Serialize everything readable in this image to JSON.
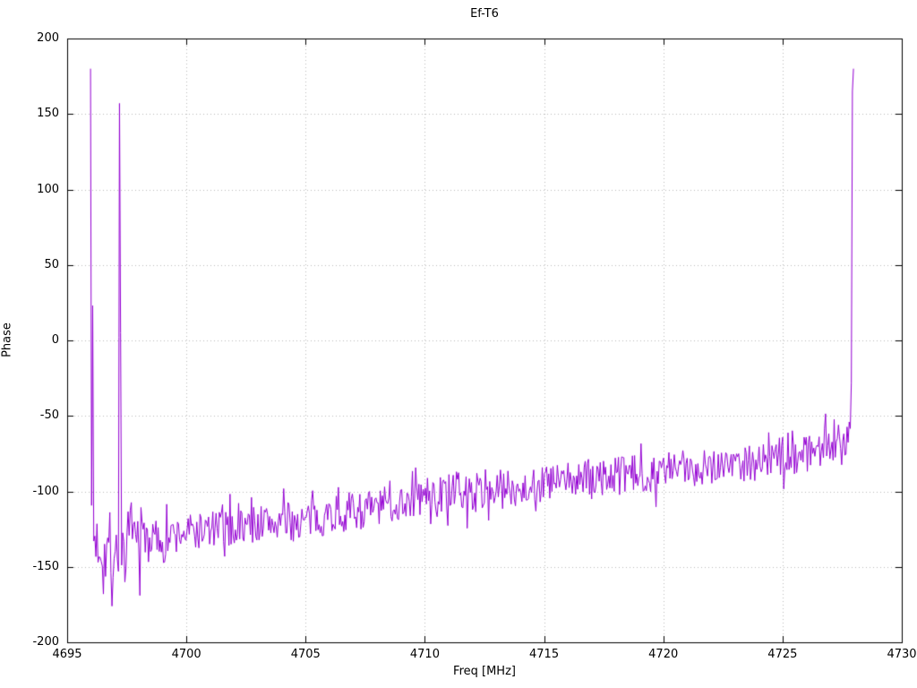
{
  "chart_data": {
    "type": "line",
    "title": "Ef-T6",
    "xlabel": "Freq [MHz]",
    "ylabel": "Phase",
    "xlim": [
      4695,
      4730
    ],
    "ylim": [
      -200,
      200
    ],
    "x_ticks": [
      4695,
      4700,
      4705,
      4710,
      4715,
      4720,
      4725,
      4730
    ],
    "y_ticks": [
      -200,
      -150,
      -100,
      -50,
      0,
      50,
      100,
      150,
      200
    ],
    "grid": true,
    "legend": "none",
    "line_color": "#9400d3",
    "grid_color": "#bdbdbd",
    "border_color": "#000000",
    "series": [
      {
        "name": "Ef-T6 phase",
        "x_start": 4695.98,
        "x_end": 4727.98,
        "x_step": 0.045,
        "trend_anchors": [
          [
            4696.0,
            -130
          ],
          [
            4696.8,
            -140
          ],
          [
            4698.0,
            -130
          ],
          [
            4699.0,
            -132
          ],
          [
            4700.0,
            -127
          ],
          [
            4702.0,
            -124
          ],
          [
            4703.0,
            -121
          ],
          [
            4705.0,
            -120
          ],
          [
            4706.0,
            -115
          ],
          [
            4708.0,
            -111
          ],
          [
            4710.0,
            -103
          ],
          [
            4712.0,
            -101
          ],
          [
            4714.0,
            -97
          ],
          [
            4716.0,
            -93
          ],
          [
            4718.0,
            -90
          ],
          [
            4720.0,
            -87
          ],
          [
            4722.0,
            -82
          ],
          [
            4724.0,
            -80
          ],
          [
            4726.0,
            -74
          ],
          [
            4727.5,
            -66
          ],
          [
            4727.9,
            -60
          ]
        ],
        "noise": {
          "seed": 7,
          "amp": 13,
          "amp_start": 22,
          "amp_start_until": 4698.5,
          "spike_prob": 0.12,
          "spike_mult": 1.8
        },
        "overrides": [
          [
            4696.0,
            180
          ],
          [
            4696.05,
            23
          ],
          [
            4696.5,
            -168
          ],
          [
            4696.9,
            -176
          ],
          [
            4697.2,
            157
          ],
          [
            4697.26,
            5
          ],
          [
            4697.4,
            -160
          ],
          [
            4727.9,
            -28
          ],
          [
            4727.94,
            165
          ],
          [
            4727.98,
            180
          ]
        ]
      }
    ]
  }
}
